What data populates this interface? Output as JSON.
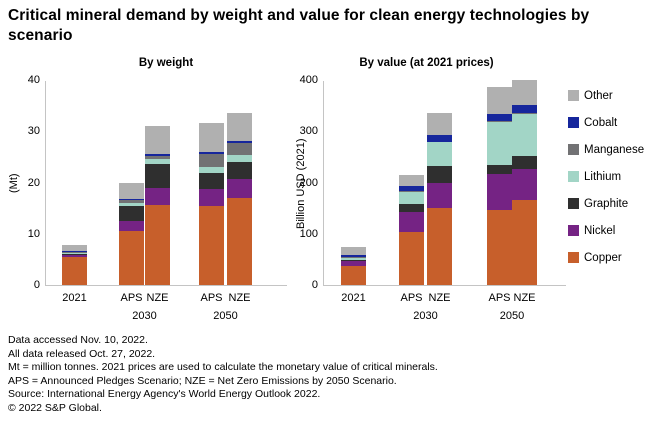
{
  "title": "Critical mineral demand by weight and value for clean energy technologies by scenario",
  "legend": {
    "position": "right",
    "items": [
      {
        "key": "other",
        "label": "Other",
        "color": "#b0b0b0"
      },
      {
        "key": "cobalt",
        "label": "Cobalt",
        "color": "#16269c"
      },
      {
        "key": "manganese",
        "label": "Manganese",
        "color": "#727274"
      },
      {
        "key": "lithium",
        "label": "Lithium",
        "color": "#a2d5c6"
      },
      {
        "key": "graphite",
        "label": "Graphite",
        "color": "#2f2f2f"
      },
      {
        "key": "nickel",
        "label": "Nickel",
        "color": "#752384"
      },
      {
        "key": "copper",
        "label": "Copper",
        "color": "#c75f2b"
      }
    ]
  },
  "chart_data": [
    {
      "type": "bar",
      "stacked": true,
      "title": "By weight",
      "ylabel": "(Mt)",
      "ylim": [
        0,
        40
      ],
      "yticks": [
        0,
        10,
        20,
        30,
        40
      ],
      "grid": false,
      "categories": [
        "2021",
        "APS 2030",
        "NZE 2030",
        "APS 2050",
        "NZE 2050"
      ],
      "x_tick_labels": [
        "2021",
        "APS",
        "NZE",
        "APS",
        "NZE"
      ],
      "group_labels": [
        {
          "text": "2030",
          "between": [
            1,
            2
          ]
        },
        {
          "text": "2050",
          "between": [
            3,
            4
          ]
        }
      ],
      "series": [
        {
          "name": "Copper",
          "color": "#c75f2b",
          "values": [
            5.4,
            10.5,
            15.7,
            15.5,
            17.0
          ]
        },
        {
          "name": "Nickel",
          "color": "#752384",
          "values": [
            0.4,
            2.0,
            3.2,
            3.3,
            3.7
          ]
        },
        {
          "name": "Graphite",
          "color": "#2f2f2f",
          "values": [
            0.3,
            2.9,
            4.7,
            3.1,
            3.4
          ]
        },
        {
          "name": "Lithium",
          "color": "#a2d5c6",
          "values": [
            0.1,
            0.7,
            1.0,
            1.1,
            1.2
          ]
        },
        {
          "name": "Manganese",
          "color": "#727274",
          "values": [
            0.2,
            0.4,
            0.5,
            2.6,
            2.5
          ]
        },
        {
          "name": "Cobalt",
          "color": "#16269c",
          "values": [
            0.2,
            0.3,
            0.4,
            0.4,
            0.4
          ]
        },
        {
          "name": "Other",
          "color": "#b0b0b0",
          "values": [
            1.3,
            3.2,
            5.5,
            5.7,
            5.4
          ]
        }
      ]
    },
    {
      "type": "bar",
      "stacked": true,
      "title": "By value (at 2021 prices)",
      "ylabel": "Billion USD (2021)",
      "ylim": [
        0,
        400
      ],
      "yticks": [
        0,
        100,
        200,
        300,
        400
      ],
      "grid": false,
      "categories": [
        "2021",
        "APS 2030",
        "NZE 2030",
        "APS 2050",
        "NZE 2050"
      ],
      "x_tick_labels": [
        "2021",
        "APS",
        "NZE",
        "APS",
        "NZE"
      ],
      "group_labels": [
        {
          "text": "2030",
          "between": [
            1,
            2
          ]
        },
        {
          "text": "2050",
          "between": [
            3,
            4
          ]
        }
      ],
      "series": [
        {
          "name": "Copper",
          "color": "#c75f2b",
          "values": [
            37,
            104,
            150,
            146,
            166
          ]
        },
        {
          "name": "Nickel",
          "color": "#752384",
          "values": [
            10,
            39,
            49,
            70,
            60
          ]
        },
        {
          "name": "Graphite",
          "color": "#2f2f2f",
          "values": [
            2,
            16,
            34,
            18,
            25
          ]
        },
        {
          "name": "Lithium",
          "color": "#a2d5c6",
          "values": [
            4,
            23,
            46,
            85,
            83
          ]
        },
        {
          "name": "Manganese",
          "color": "#727274",
          "values": [
            1,
            1,
            1,
            2,
            2
          ]
        },
        {
          "name": "Cobalt",
          "color": "#16269c",
          "values": [
            5,
            10,
            12,
            12,
            16
          ]
        },
        {
          "name": "Other",
          "color": "#b0b0b0",
          "values": [
            16,
            22,
            44,
            53,
            49
          ]
        }
      ]
    }
  ],
  "footnotes": [
    "Data accessed Nov. 10, 2022.",
    "All data released Oct. 27, 2022.",
    "Mt = million tonnes. 2021 prices are used to calculate the monetary value of critical minerals.",
    "APS = Announced Pledges Scenario; NZE = Net Zero Emissions by 2050 Scenario.",
    "Source: International Energy Agency's World Energy Outlook 2022.",
    "© 2022 S&P Global."
  ]
}
